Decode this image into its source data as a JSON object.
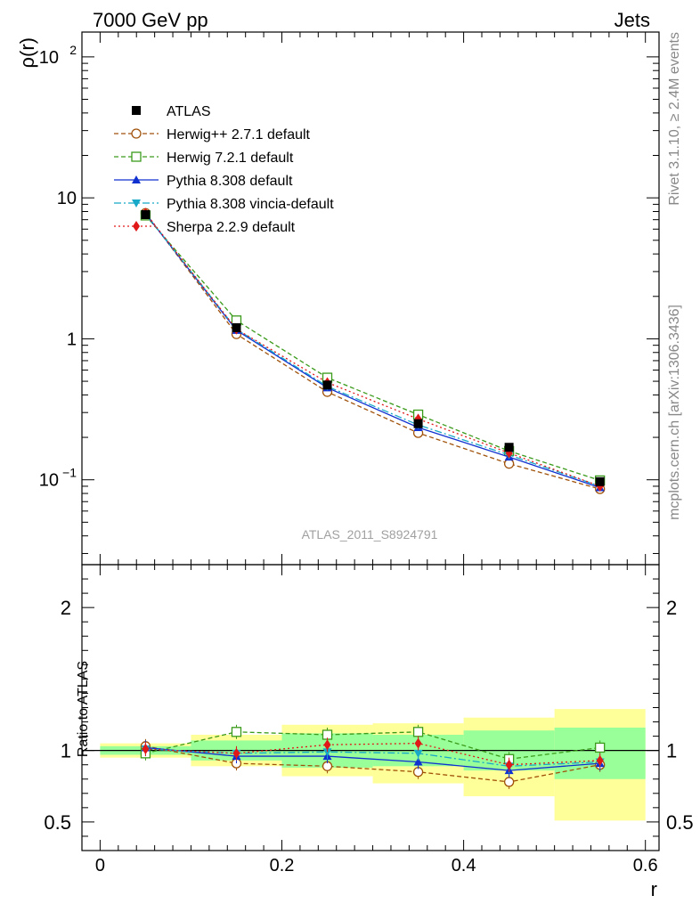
{
  "header": {
    "left": "7000 GeV pp",
    "right": "Jets"
  },
  "side": {
    "rivet": "Rivet 3.1.10, ≥ 2.4M events",
    "mcplots": "mcplots.cern.ch [arXiv:1306.3436]"
  },
  "watermark": "ATLAS_2011_S8924791",
  "chart_data": {
    "type": "line",
    "main": {
      "ylabel": "ρ(r)",
      "yscale": "log",
      "ylim": [
        0.025,
        150
      ],
      "yticks": [
        {
          "v": 0.1,
          "base": "10",
          "exp": "−1"
        },
        {
          "v": 1,
          "base": "1",
          "exp": ""
        },
        {
          "v": 10,
          "base": "10",
          "exp": ""
        },
        {
          "v": 100,
          "base": "10",
          "exp": "2"
        }
      ]
    },
    "ratio": {
      "ylabel": "Ratio to ATLAS",
      "ylim": [
        0.3,
        2.3
      ],
      "yticks": [
        {
          "v": 0.5,
          "label": "0.5"
        },
        {
          "v": 1,
          "label": "1"
        },
        {
          "v": 2,
          "label": "2"
        }
      ],
      "bands": [
        {
          "x0": 0.0,
          "x1": 0.1,
          "inner": [
            0.97,
            1.03
          ],
          "outer": [
            0.95,
            1.05
          ]
        },
        {
          "x0": 0.1,
          "x1": 0.2,
          "inner": [
            0.93,
            1.07
          ],
          "outer": [
            0.89,
            1.11
          ]
        },
        {
          "x0": 0.2,
          "x1": 0.3,
          "inner": [
            0.88,
            1.12
          ],
          "outer": [
            0.82,
            1.18
          ]
        },
        {
          "x0": 0.3,
          "x1": 0.4,
          "inner": [
            0.89,
            1.11
          ],
          "outer": [
            0.77,
            1.19
          ]
        },
        {
          "x0": 0.4,
          "x1": 0.5,
          "inner": [
            0.86,
            1.14
          ],
          "outer": [
            0.68,
            1.23
          ]
        },
        {
          "x0": 0.5,
          "x1": 0.6,
          "inner": [
            0.8,
            1.16
          ],
          "outer": [
            0.51,
            1.29
          ]
        }
      ]
    },
    "xlabel": "r",
    "xlim": [
      -0.02,
      0.615
    ],
    "xticks": [
      {
        "v": 0,
        "label": "0"
      },
      {
        "v": 0.2,
        "label": "0.2"
      },
      {
        "v": 0.4,
        "label": "0.4"
      },
      {
        "v": 0.6,
        "label": "0.6"
      }
    ],
    "x": [
      0.05,
      0.15,
      0.25,
      0.35,
      0.45,
      0.55
    ],
    "reference": {
      "name": "ATLAS",
      "values": [
        7.6,
        1.2,
        0.47,
        0.25,
        0.17,
        0.097
      ]
    },
    "series": [
      {
        "name": "Herwig++ 2.7.1 default",
        "color": "#a0520a",
        "marker": "circle-open",
        "dash": "5,3",
        "values": [
          7.8,
          1.08,
          0.42,
          0.215,
          0.13,
          0.086
        ],
        "ratio": [
          1.03,
          0.91,
          0.89,
          0.85,
          0.78,
          0.9
        ]
      },
      {
        "name": "Herwig 7.2.1 default",
        "color": "#3a9a1a",
        "marker": "square-open",
        "dash": "5,3",
        "values": [
          7.5,
          1.35,
          0.53,
          0.29,
          0.16,
          0.099
        ],
        "ratio": [
          0.98,
          1.13,
          1.11,
          1.13,
          0.94,
          1.02
        ]
      },
      {
        "name": "Pythia 8.308 default",
        "color": "#1030d0",
        "marker": "triangle-up",
        "dash": "",
        "values": [
          7.7,
          1.15,
          0.45,
          0.235,
          0.145,
          0.088
        ],
        "ratio": [
          1.02,
          0.96,
          0.96,
          0.92,
          0.86,
          0.91
        ]
      },
      {
        "name": "Pythia 8.308 vincia-default",
        "color": "#18a8c8",
        "marker": "triangle-down",
        "dash": "8,3,2,3",
        "values": [
          7.7,
          1.17,
          0.46,
          0.245,
          0.15,
          0.09
        ],
        "ratio": [
          1.01,
          0.98,
          0.99,
          0.98,
          0.89,
          0.92
        ]
      },
      {
        "name": "Sherpa 2.2.9 default",
        "color": "#e01818",
        "marker": "diamond",
        "dash": "2,3",
        "values": [
          7.8,
          1.17,
          0.49,
          0.27,
          0.155,
          0.09
        ],
        "ratio": [
          1.01,
          0.98,
          1.04,
          1.05,
          0.9,
          0.93
        ]
      }
    ]
  }
}
